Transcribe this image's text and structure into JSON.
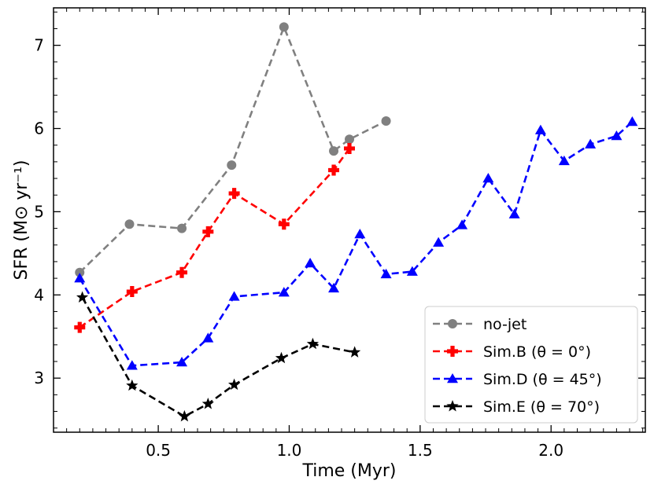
{
  "chart_data": {
    "type": "line",
    "title": "",
    "xlabel": "Time (Myr)",
    "ylabel": "SFR (M⊙ yr⁻¹)",
    "xlim": [
      0.1,
      2.36
    ],
    "ylim": [
      2.35,
      7.45
    ],
    "xticks": [
      0.5,
      1.0,
      1.5,
      2.0
    ],
    "xtick_labels": [
      "0.5",
      "1.0",
      "1.5",
      "2.0"
    ],
    "yticks": [
      3,
      4,
      5,
      6,
      7
    ],
    "ytick_labels": [
      "3",
      "4",
      "5",
      "6",
      "7"
    ],
    "grid": false,
    "legend_position": "lower-right",
    "series": [
      {
        "name": "no-jet",
        "color": "#808080",
        "marker": "circle",
        "x": [
          0.2,
          0.39,
          0.59,
          0.78,
          0.98,
          1.17,
          1.23,
          1.37
        ],
        "y": [
          4.27,
          4.85,
          4.8,
          5.56,
          7.22,
          5.73,
          5.87,
          6.09
        ]
      },
      {
        "name": "Sim.B (θ = 0°)",
        "color": "#ff0000",
        "marker": "plus",
        "x": [
          0.2,
          0.4,
          0.59,
          0.69,
          0.79,
          0.98,
          1.17,
          1.23
        ],
        "y": [
          3.61,
          4.04,
          4.27,
          4.76,
          5.22,
          4.85,
          5.5,
          5.76
        ]
      },
      {
        "name": "Sim.D (θ = 45°)",
        "color": "#0000ff",
        "marker": "triangle",
        "x": [
          0.2,
          0.4,
          0.59,
          0.69,
          0.79,
          0.98,
          1.08,
          1.17,
          1.27,
          1.37,
          1.47,
          1.57,
          1.66,
          1.76,
          1.86,
          1.96,
          2.05,
          2.15,
          2.25,
          2.31
        ],
        "y": [
          4.2,
          3.15,
          3.19,
          3.48,
          3.98,
          4.03,
          4.38,
          4.08,
          4.73,
          4.25,
          4.28,
          4.63,
          4.84,
          5.4,
          4.97,
          5.98,
          5.61,
          5.81,
          5.91,
          6.08
        ]
      },
      {
        "name": "Sim.E (θ = 70°)",
        "color": "#000000",
        "marker": "star",
        "x": [
          0.21,
          0.4,
          0.6,
          0.69,
          0.79,
          0.97,
          1.09,
          1.25
        ],
        "y": [
          3.97,
          2.91,
          2.54,
          2.69,
          2.92,
          3.24,
          3.41,
          3.31
        ]
      }
    ]
  }
}
